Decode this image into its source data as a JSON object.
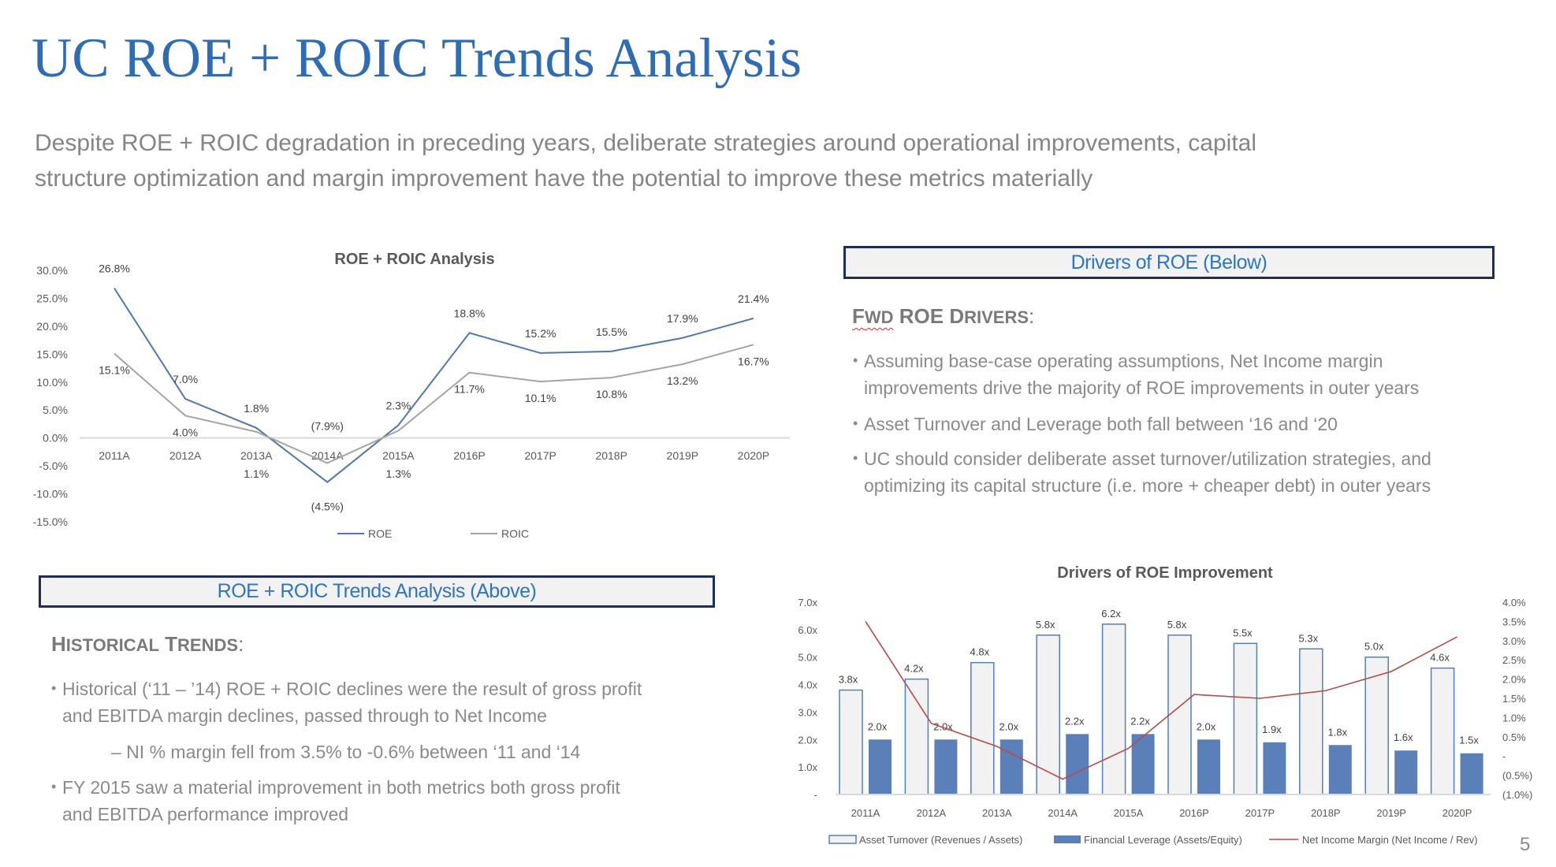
{
  "title": "UC ROE + ROIC Trends Analysis",
  "subtitle_lines": [
    "Despite ROE + ROIC degradation in preceding years, deliberate strategies around operational improvements, capital",
    "structure optimization and margin improvement have the potential to improve these metrics materially"
  ],
  "right_panel": {
    "box_label": "Drivers of ROE (Below)",
    "heading_parts": [
      "F",
      "WD",
      " ROE ",
      "D",
      "RIVERS",
      ":"
    ],
    "bullets": [
      {
        "lines": [
          "Assuming base-case operating assumptions, Net Income margin",
          "improvements drive the majority of ROE improvements in outer years"
        ]
      },
      {
        "lines": [
          "Asset Turnover and Leverage both fall between ‘16 and ‘20"
        ]
      },
      {
        "lines": [
          "UC should consider deliberate asset turnover/utilization strategies, and",
          "optimizing its capital structure (i.e. more + cheaper debt) in outer years"
        ]
      }
    ]
  },
  "left_panel": {
    "box_label": "ROE + ROIC Trends Analysis (Above)",
    "heading_parts": [
      "H",
      "ISTORICAL",
      " T",
      "RENDS",
      ":"
    ],
    "bullet1": [
      "Historical (‘11 – ’14) ROE + ROIC declines were the result of gross profit",
      "and EBITDA margin declines, passed through to Net Income"
    ],
    "sub_bullet": "– NI % margin fell from 3.5% to -0.6% between ‘11 and ‘14",
    "bullet2": [
      "FY 2015 saw a material improvement in both metrics both gross profit",
      "and EBITDA performance improved"
    ]
  },
  "page_number": "5",
  "chart_data": [
    {
      "type": "line",
      "title": "ROE + ROIC Analysis",
      "categories": [
        "2011A",
        "2012A",
        "2013A",
        "2014A",
        "2015A",
        "2016P",
        "2017P",
        "2018P",
        "2019P",
        "2020P"
      ],
      "y_ticks": [
        "30.0%",
        "25.0%",
        "20.0%",
        "15.0%",
        "10.0%",
        "5.0%",
        "0.0%",
        "-5.0%",
        "-10.0%",
        "-15.0%"
      ],
      "ylim": [
        -15,
        30
      ],
      "legend": "bottom",
      "grid": false,
      "series": [
        {
          "name": "ROE",
          "color": "#4f76b8",
          "values": [
            26.8,
            7.0,
            1.8,
            -7.9,
            2.3,
            18.8,
            15.2,
            15.5,
            17.9,
            21.4
          ],
          "labels": [
            "26.8%",
            "7.0%",
            "1.8%",
            "(7.9%)",
            "2.3%",
            "18.8%",
            "15.2%",
            "15.5%",
            "17.9%",
            "21.4%"
          ]
        },
        {
          "name": "ROIC",
          "color": "#a5a5a5",
          "values": [
            15.1,
            4.0,
            1.1,
            -4.5,
            1.3,
            11.7,
            10.1,
            10.8,
            13.2,
            16.7
          ],
          "labels": [
            "15.1%",
            "4.0%",
            "1.1%",
            "(4.5%)",
            "1.3%",
            "11.7%",
            "10.1%",
            "10.8%",
            "13.2%",
            "16.7%"
          ]
        }
      ]
    },
    {
      "type": "bar",
      "title": "Drivers of ROE Improvement",
      "categories": [
        "2011A",
        "2012A",
        "2013A",
        "2014A",
        "2015A",
        "2016P",
        "2017P",
        "2018P",
        "2019P",
        "2020P"
      ],
      "y_ticks": [
        "7.0x",
        "6.0x",
        "5.0x",
        "4.0x",
        "3.0x",
        "2.0x",
        "1.0x",
        "-"
      ],
      "ylim": [
        0,
        7
      ],
      "y2_ticks": [
        "4.0%",
        "3.5%",
        "3.0%",
        "2.5%",
        "2.0%",
        "1.5%",
        "1.0%",
        "0.5%",
        "-",
        "(0.5%)",
        "(1.0%)"
      ],
      "y2lim": [
        -1.0,
        4.0
      ],
      "legend": "bottom",
      "series": [
        {
          "name": "Asset Turnover (Revenues / Assets)",
          "kind": "bar",
          "fill": "#f2f2f2",
          "stroke": "#4f81bd",
          "values": [
            3.8,
            4.2,
            4.8,
            5.8,
            6.2,
            5.8,
            5.5,
            5.3,
            5.0,
            4.6
          ],
          "labels": [
            "3.8x",
            "4.2x",
            "4.8x",
            "5.8x",
            "6.2x",
            "5.8x",
            "5.5x",
            "5.3x",
            "5.0x",
            "4.6x"
          ]
        },
        {
          "name": "Financial Leverage (Assets/Equity)",
          "kind": "bar",
          "fill": "#5b80b9",
          "values": [
            2.0,
            2.0,
            2.0,
            2.2,
            2.2,
            2.0,
            1.9,
            1.8,
            1.6,
            1.5
          ],
          "labels": [
            "2.0x",
            "2.0x",
            "2.0x",
            "2.2x",
            "2.2x",
            "2.0x",
            "1.9x",
            "1.8x",
            "1.6x",
            "1.5x"
          ]
        },
        {
          "name": "Net Income Margin (Net Income / Rev)",
          "kind": "line",
          "axis": "right",
          "color": "#b94a48",
          "values": [
            3.5,
            0.85,
            0.25,
            -0.6,
            0.2,
            1.6,
            1.5,
            1.7,
            2.2,
            3.1
          ]
        }
      ]
    }
  ]
}
